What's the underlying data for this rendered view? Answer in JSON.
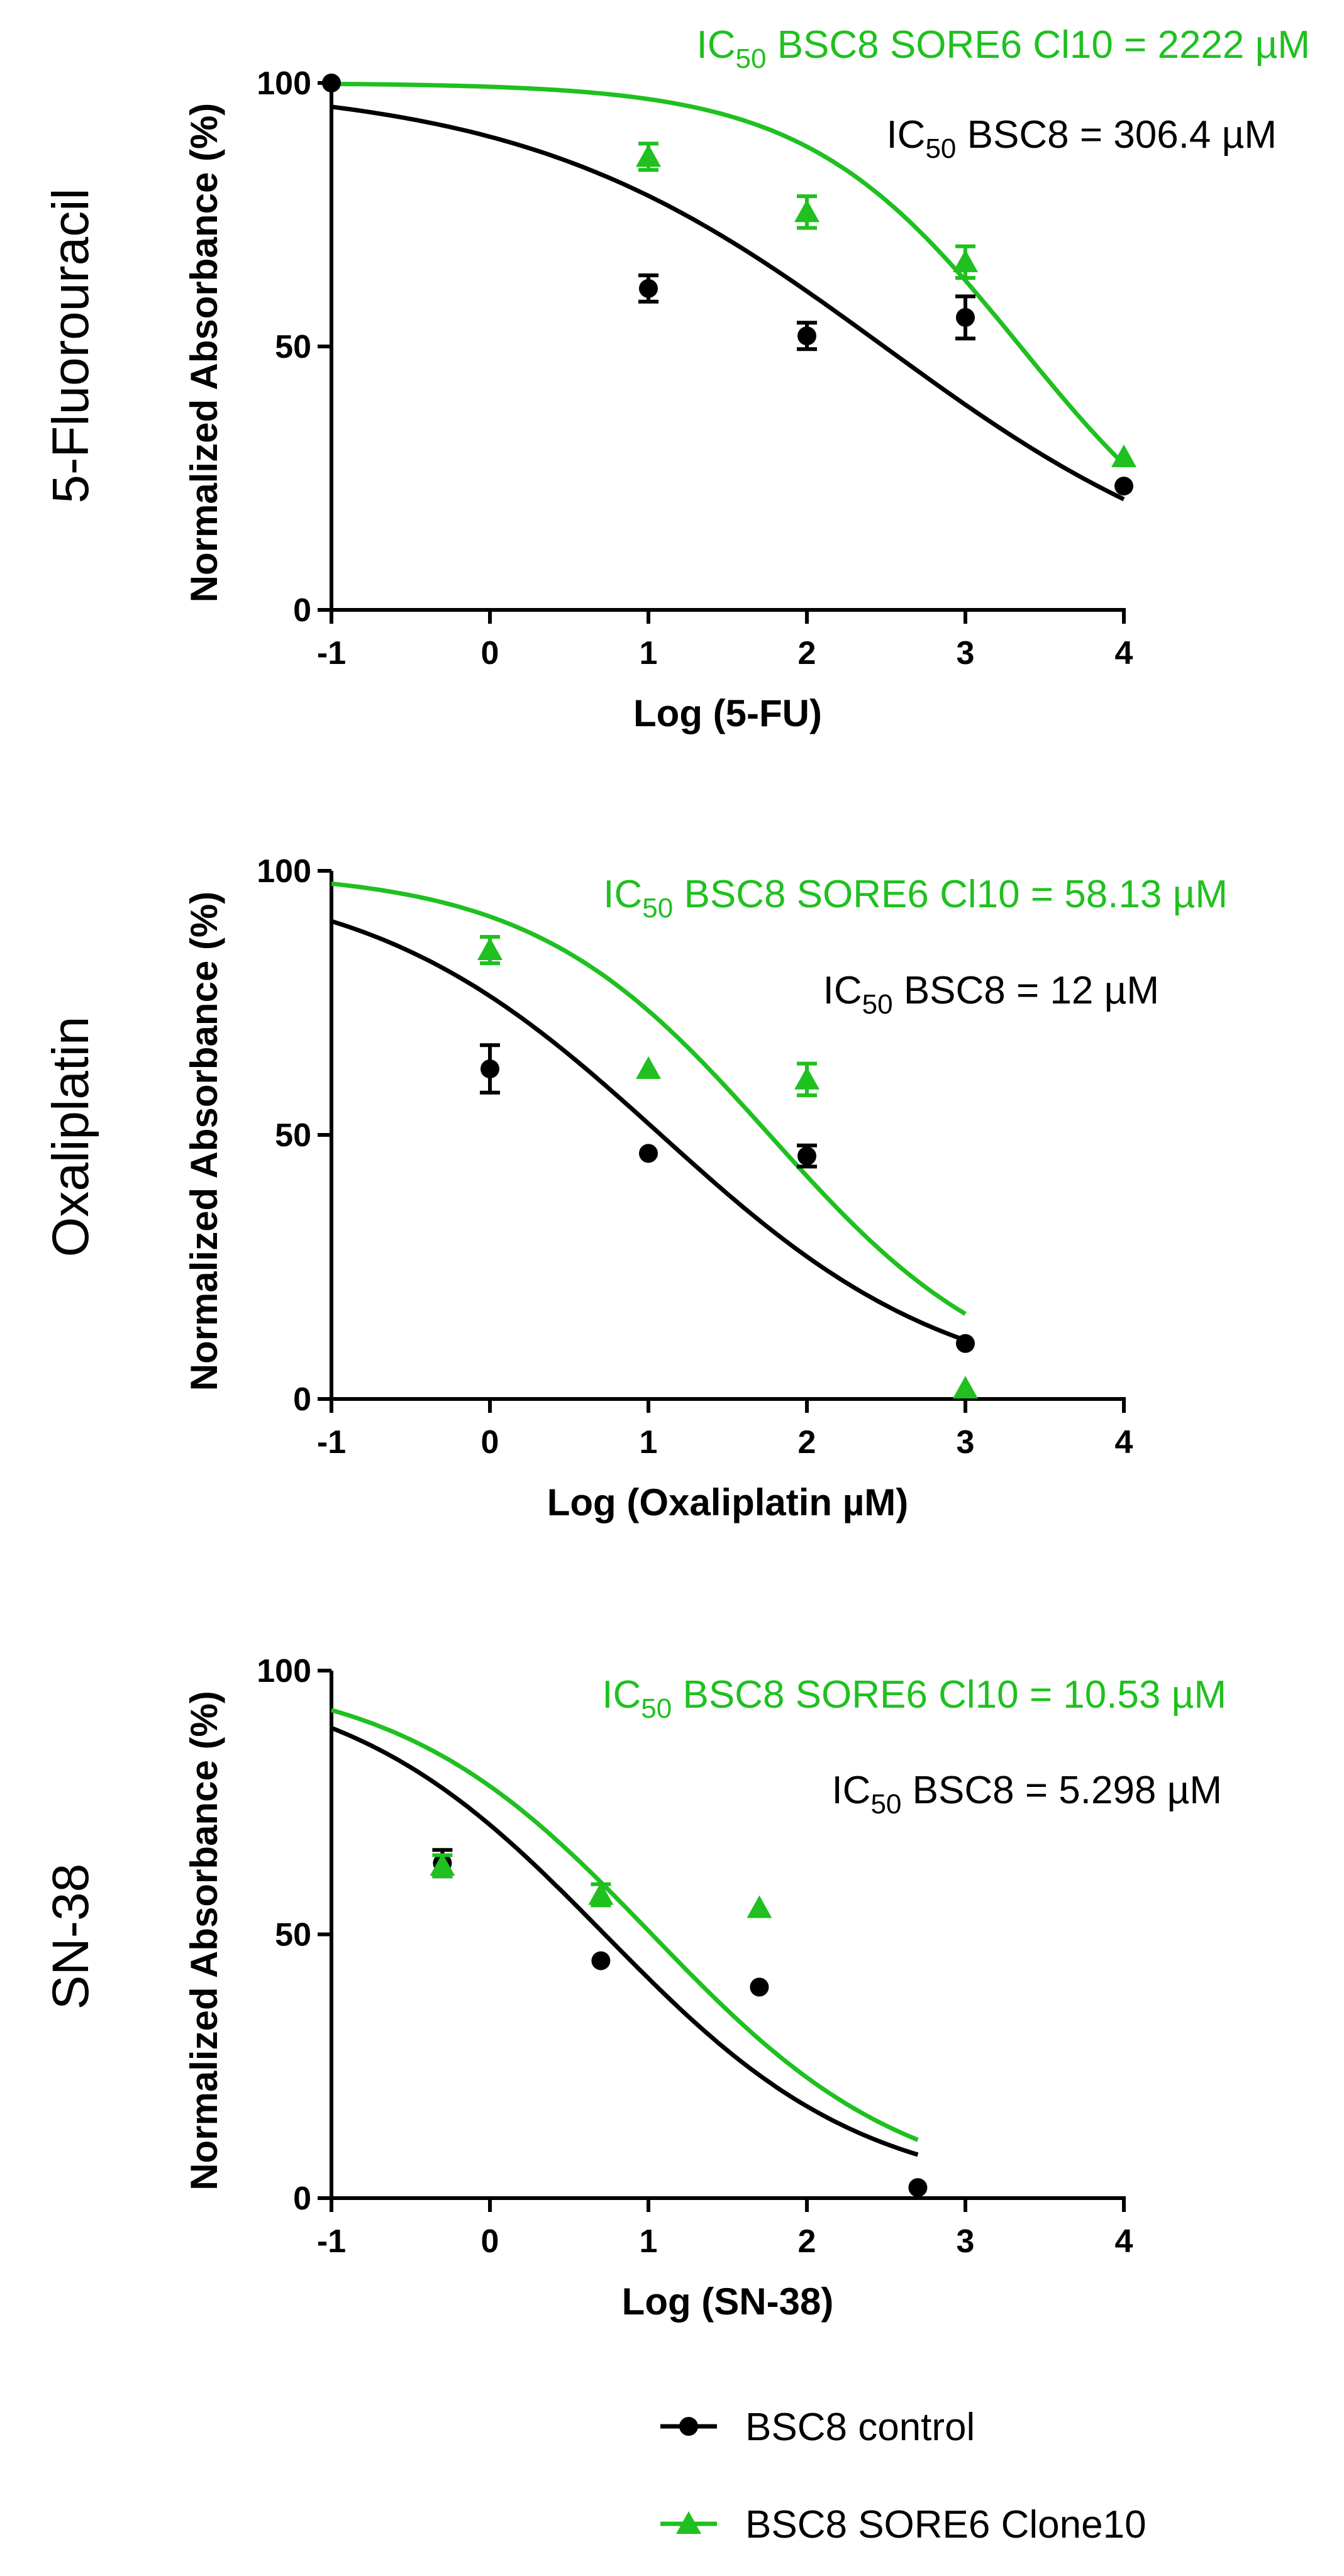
{
  "colors": {
    "control": "#000000",
    "clone": "#1fc01f"
  },
  "legend": {
    "items": [
      {
        "label": "BSC8 control",
        "color": "#000000",
        "marker": "circle"
      },
      {
        "label": "BSC8 SORE6 Clone10",
        "color": "#1fc01f",
        "marker": "triangle"
      }
    ]
  },
  "chart_data": [
    {
      "type": "scatter",
      "row_label": "5-Fluorouracil",
      "xlabel": "Log (5-FU)",
      "ylabel": "Normalized Absorbance (%)",
      "xlim": [
        -1,
        4
      ],
      "ylim": [
        0,
        100
      ],
      "xticks": [
        "-1",
        "0",
        "1",
        "2",
        "3",
        "4"
      ],
      "yticks": [
        "0",
        "50",
        "100"
      ],
      "annotations": [
        {
          "prefix": "IC",
          "sub": "50",
          "text": " BSC8 SORE6 Cl10 = 2222 µM",
          "color": "#1fc01f"
        },
        {
          "prefix": "IC",
          "sub": "50",
          "text": " BSC8 = 306.4 µM",
          "color": "#000000"
        }
      ],
      "series": [
        {
          "name": "BSC8 control",
          "marker": "circle",
          "color": "#000000",
          "x": [
            -1,
            1,
            2,
            3,
            4
          ],
          "y": [
            100,
            61,
            52,
            55.5,
            23.5
          ],
          "err": [
            0,
            2.5,
            2.5,
            4,
            0
          ],
          "fit": {
            "ic50_log": 2.486,
            "bottom": 0,
            "top": 100,
            "hill": 0.38,
            "x_range": [
              -1,
              4
            ]
          }
        },
        {
          "name": "BSC8 SORE6 Clone10",
          "marker": "triangle",
          "color": "#1fc01f",
          "x": [
            1,
            2,
            3,
            4
          ],
          "y": [
            86,
            75.5,
            66,
            29
          ],
          "err": [
            2.5,
            3,
            3,
            0
          ],
          "fit": {
            "ic50_log": 3.347,
            "bottom": 0,
            "top": 100,
            "hill": 0.64,
            "x_range": [
              -1,
              4
            ]
          }
        }
      ]
    },
    {
      "type": "scatter",
      "row_label": "Oxaliplatin",
      "xlabel": "Log (Oxaliplatin µM)",
      "ylabel": "Normalized Absorbance (%)",
      "xlim": [
        -1,
        4
      ],
      "ylim": [
        0,
        100
      ],
      "xticks": [
        "-1",
        "0",
        "1",
        "2",
        "3",
        "4"
      ],
      "yticks": [
        "0",
        "50",
        "100"
      ],
      "annotations": [
        {
          "prefix": "IC",
          "sub": "50",
          "text": " BSC8 SORE6 Cl10 = 58.13 µM",
          "color": "#1fc01f"
        },
        {
          "prefix": "IC",
          "sub": "50",
          "text": " BSC8 = 12 µM",
          "color": "#000000"
        }
      ],
      "series": [
        {
          "name": "BSC8 control",
          "marker": "circle",
          "color": "#000000",
          "x": [
            0,
            1,
            2,
            3
          ],
          "y": [
            62.5,
            46.5,
            46,
            10.5
          ],
          "err": [
            4.5,
            0,
            2,
            0
          ],
          "fit": {
            "ic50_log": 1.079,
            "bottom": 0,
            "top": 100,
            "hill": 0.47,
            "x_range": [
              -1,
              3
            ]
          }
        },
        {
          "name": "BSC8 SORE6 Clone10",
          "marker": "triangle",
          "color": "#1fc01f",
          "x": [
            0,
            1,
            2,
            3
          ],
          "y": [
            85,
            62.5,
            60.5,
            2
          ],
          "err": [
            2.5,
            0,
            3,
            0
          ],
          "fit": {
            "ic50_log": 1.764,
            "bottom": 0,
            "top": 100,
            "hill": 0.58,
            "x_range": [
              -1,
              3
            ]
          }
        }
      ]
    },
    {
      "type": "scatter",
      "row_label": "SN-38",
      "xlabel": "Log (SN-38)",
      "ylabel": "Normalized Absorbance (%)",
      "xlim": [
        -1,
        4
      ],
      "ylim": [
        0,
        100
      ],
      "xticks": [
        "-1",
        "0",
        "1",
        "2",
        "3",
        "4"
      ],
      "yticks": [
        "0",
        "50",
        "100"
      ],
      "annotations": [
        {
          "prefix": "IC",
          "sub": "50",
          "text": " BSC8 SORE6 Cl10 = 10.53 µM",
          "color": "#1fc01f"
        },
        {
          "prefix": "IC",
          "sub": "50",
          "text": " BSC8 = 5.298 µM",
          "color": "#000000"
        }
      ],
      "series": [
        {
          "name": "BSC8 control",
          "marker": "circle",
          "color": "#000000",
          "x": [
            -0.3,
            0.7,
            1.7,
            2.7
          ],
          "y": [
            63.5,
            45,
            40,
            2
          ],
          "err": [
            2.5,
            0,
            0,
            0
          ],
          "fit": {
            "ic50_log": 0.724,
            "bottom": 0,
            "top": 100,
            "hill": 0.53,
            "x_range": [
              -1,
              2.7
            ]
          }
        },
        {
          "name": "BSC8 SORE6 Clone10",
          "marker": "triangle",
          "color": "#1fc01f",
          "x": [
            -0.3,
            0.7,
            1.7
          ],
          "y": [
            63,
            57.5,
            55
          ],
          "err": [
            2,
            2,
            0
          ],
          "fit": {
            "ic50_log": 1.022,
            "bottom": 0,
            "top": 100,
            "hill": 0.54,
            "x_range": [
              -1,
              2.7
            ]
          }
        }
      ]
    }
  ]
}
